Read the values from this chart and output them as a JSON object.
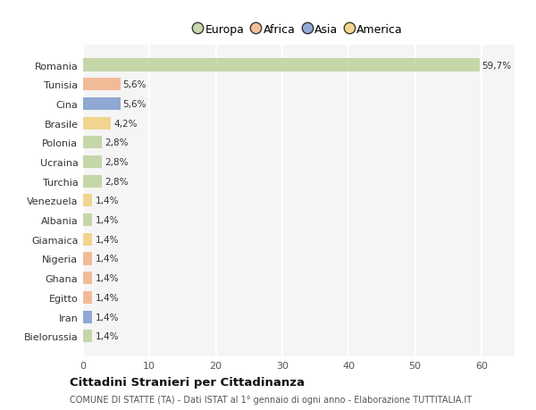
{
  "categories": [
    "Romania",
    "Tunisia",
    "Cina",
    "Brasile",
    "Polonia",
    "Ucraina",
    "Turchia",
    "Venezuela",
    "Albania",
    "Giamaica",
    "Nigeria",
    "Ghana",
    "Egitto",
    "Iran",
    "Bielorussia"
  ],
  "values": [
    59.7,
    5.6,
    5.6,
    4.2,
    2.8,
    2.8,
    2.8,
    1.4,
    1.4,
    1.4,
    1.4,
    1.4,
    1.4,
    1.4,
    1.4
  ],
  "labels": [
    "59,7%",
    "5,6%",
    "5,6%",
    "4,2%",
    "2,8%",
    "2,8%",
    "2,8%",
    "1,4%",
    "1,4%",
    "1,4%",
    "1,4%",
    "1,4%",
    "1,4%",
    "1,4%",
    "1,4%"
  ],
  "continents": [
    "Europa",
    "Africa",
    "Asia",
    "America",
    "Europa",
    "Europa",
    "Europa",
    "America",
    "Europa",
    "America",
    "Africa",
    "Africa",
    "Africa",
    "Asia",
    "Europa"
  ],
  "continent_colors": {
    "Europa": "#b5cc8e",
    "Africa": "#f0a879",
    "Asia": "#6d8fc9",
    "America": "#f0c96d"
  },
  "legend_order": [
    "Europa",
    "Africa",
    "Asia",
    "America"
  ],
  "title": "Cittadini Stranieri per Cittadinanza",
  "subtitle": "COMUNE DI STATTE (TA) - Dati ISTAT al 1° gennaio di ogni anno - Elaborazione TUTTITALIA.IT",
  "xlim": [
    0,
    65
  ],
  "xticks": [
    0,
    10,
    20,
    30,
    40,
    50,
    60
  ],
  "background_color": "#ffffff",
  "plot_bg_color": "#f5f5f5",
  "grid_color": "#ffffff",
  "bar_alpha": 0.75
}
